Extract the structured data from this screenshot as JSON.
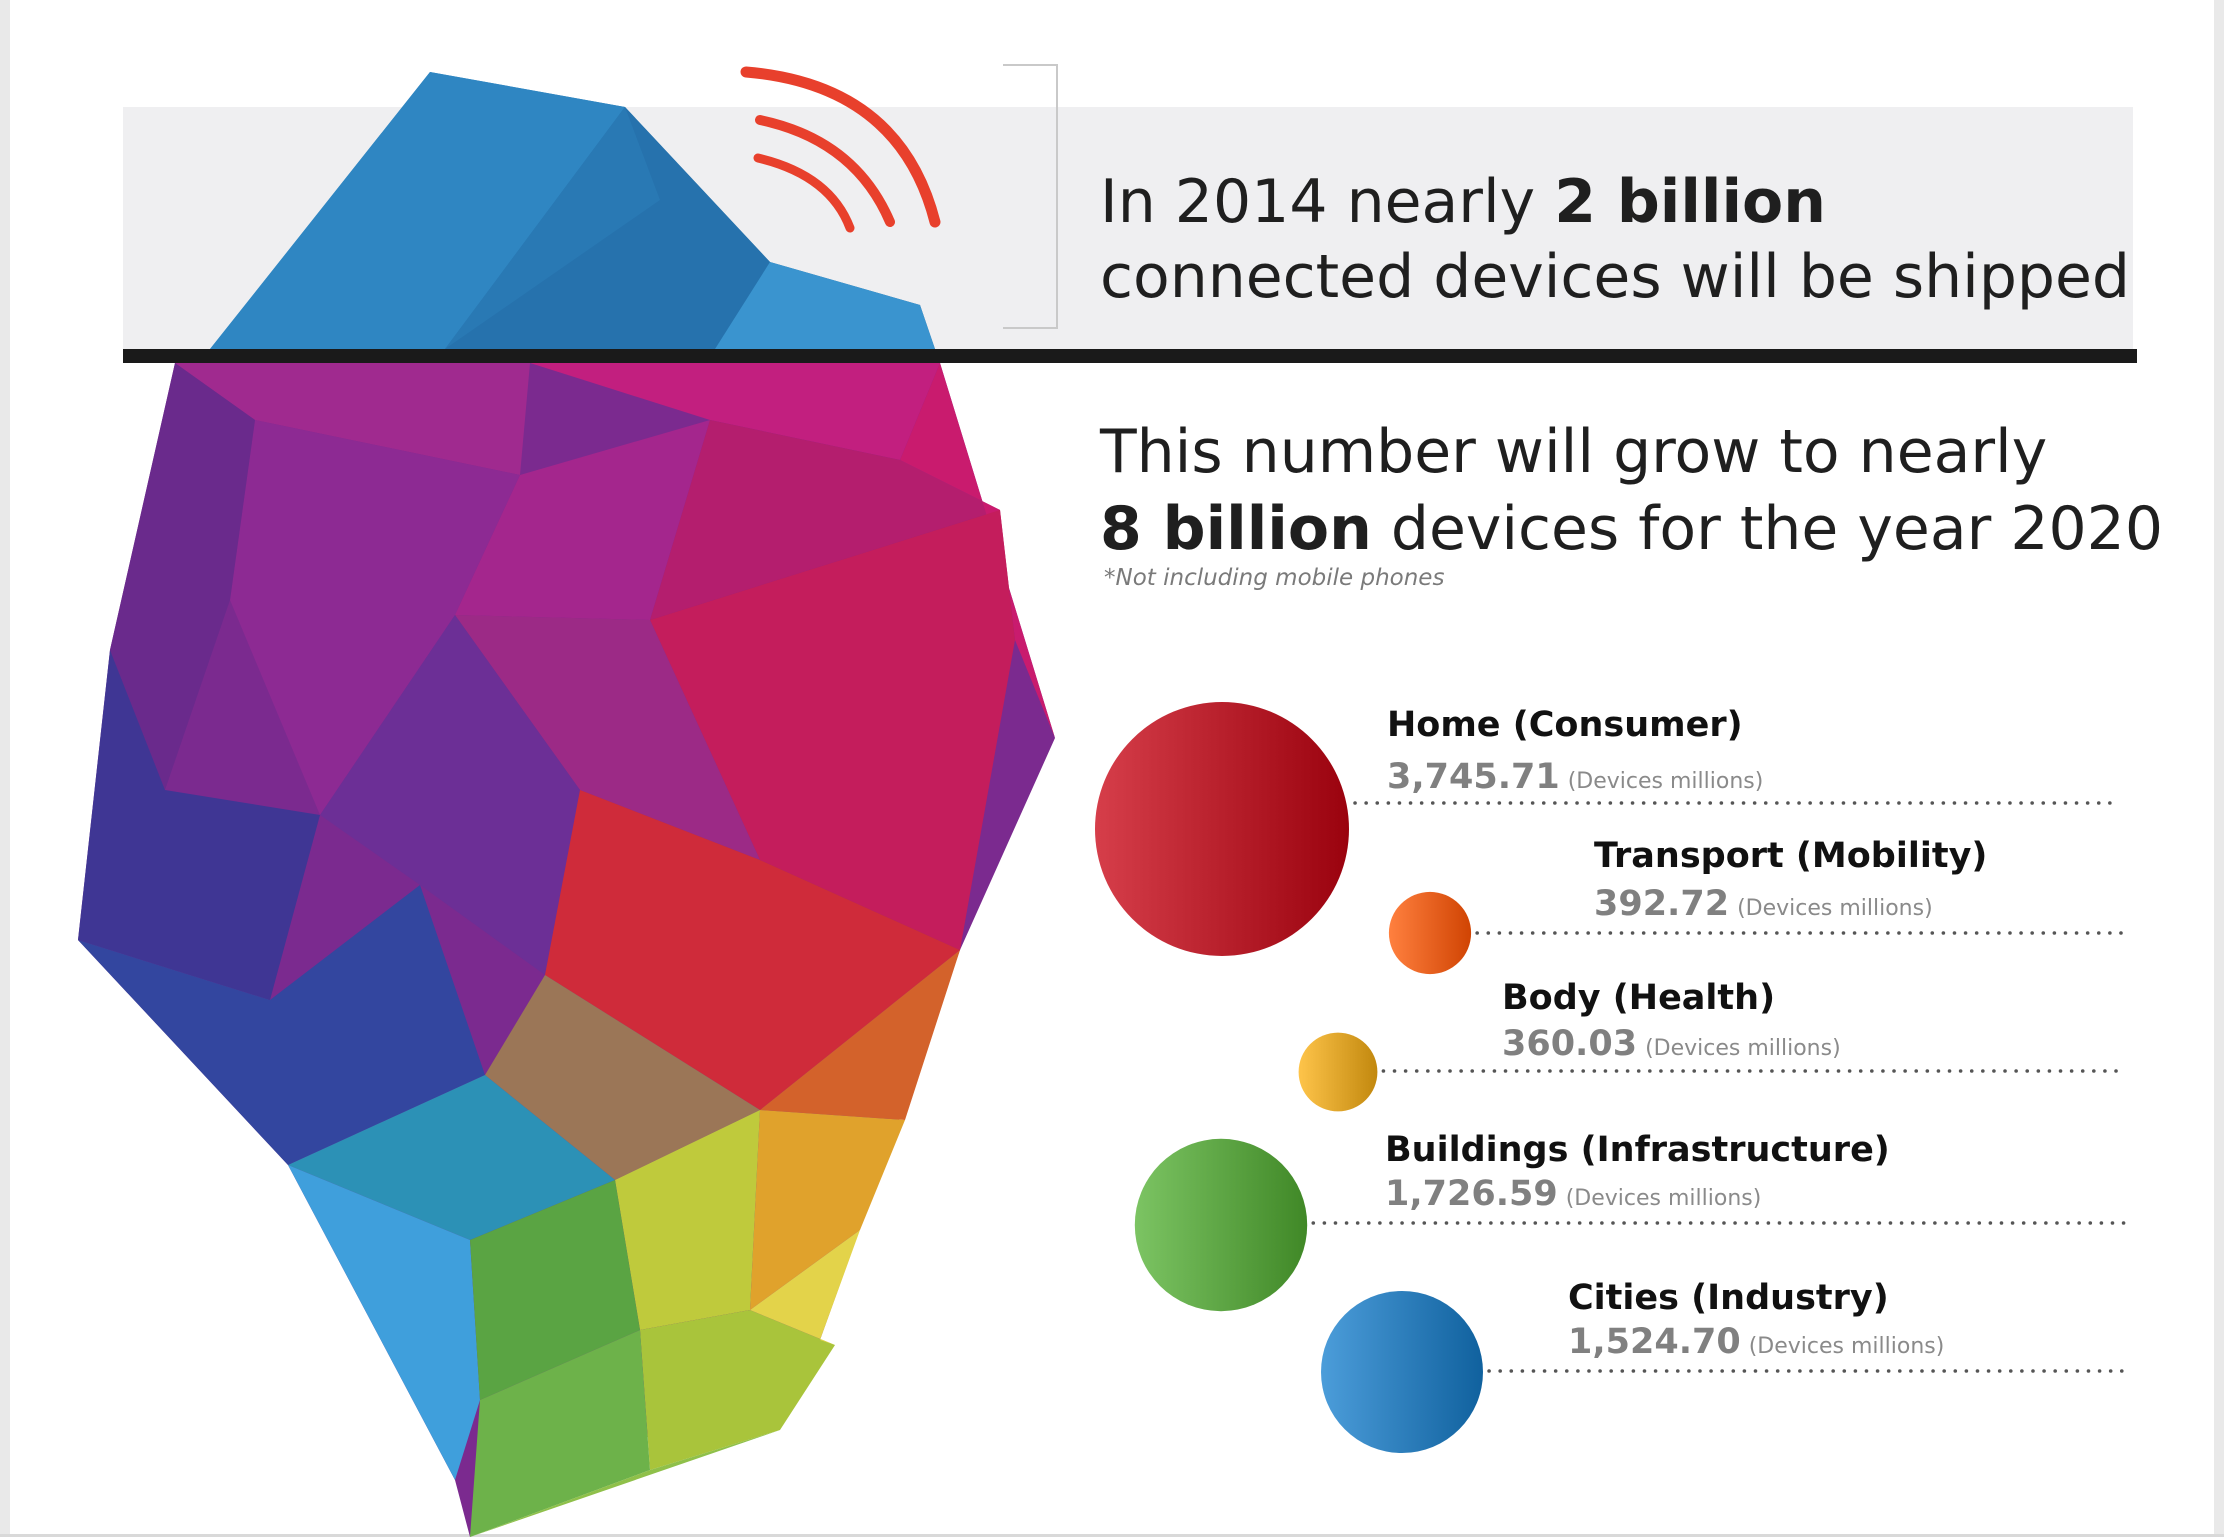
{
  "headline": {
    "line1_pre": "In 2014 nearly ",
    "line1_bold": "2 billion",
    "line2": "connected devices will be shipped",
    "line3": "This number will grow to nearly",
    "line4_bold": "8 billion",
    "line4_post": " devices for the year 2020",
    "footnote": "*Not including mobile phones"
  },
  "colors": {
    "accent_signal": "#e8402c",
    "band": "#efeff1",
    "bar": "#1a1a1a"
  },
  "chart_data": {
    "type": "bubble",
    "title": "",
    "unit": "(Devices millions)",
    "categories": [
      {
        "name": "Home (Consumer)",
        "value": 3745.71,
        "label": "3,745.71",
        "color": "#b8202c"
      },
      {
        "name": "Transport (Mobility)",
        "value": 392.72,
        "label": "392.72",
        "color": "#ee6221"
      },
      {
        "name": "Body (Health)",
        "value": 360.03,
        "label": "360.03",
        "color": "#e0a62c"
      },
      {
        "name": "Buildings (Infrastructure)",
        "value": 1726.59,
        "label": "1,726.59",
        "color": "#5ea645"
      },
      {
        "name": "Cities (Industry)",
        "value": 1524.7,
        "label": "1,524.70",
        "color": "#2e7fbc"
      }
    ]
  }
}
